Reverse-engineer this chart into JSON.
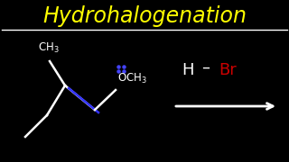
{
  "title": "Hydrohalogenation",
  "title_color": "#FFFF00",
  "title_fontsize": 17,
  "bg_color": "#000000",
  "line_color": "#FFFFFF",
  "blue_color": "#3333FF",
  "red_color": "#CC0000",
  "blue_dot_color": "#4444FF"
}
